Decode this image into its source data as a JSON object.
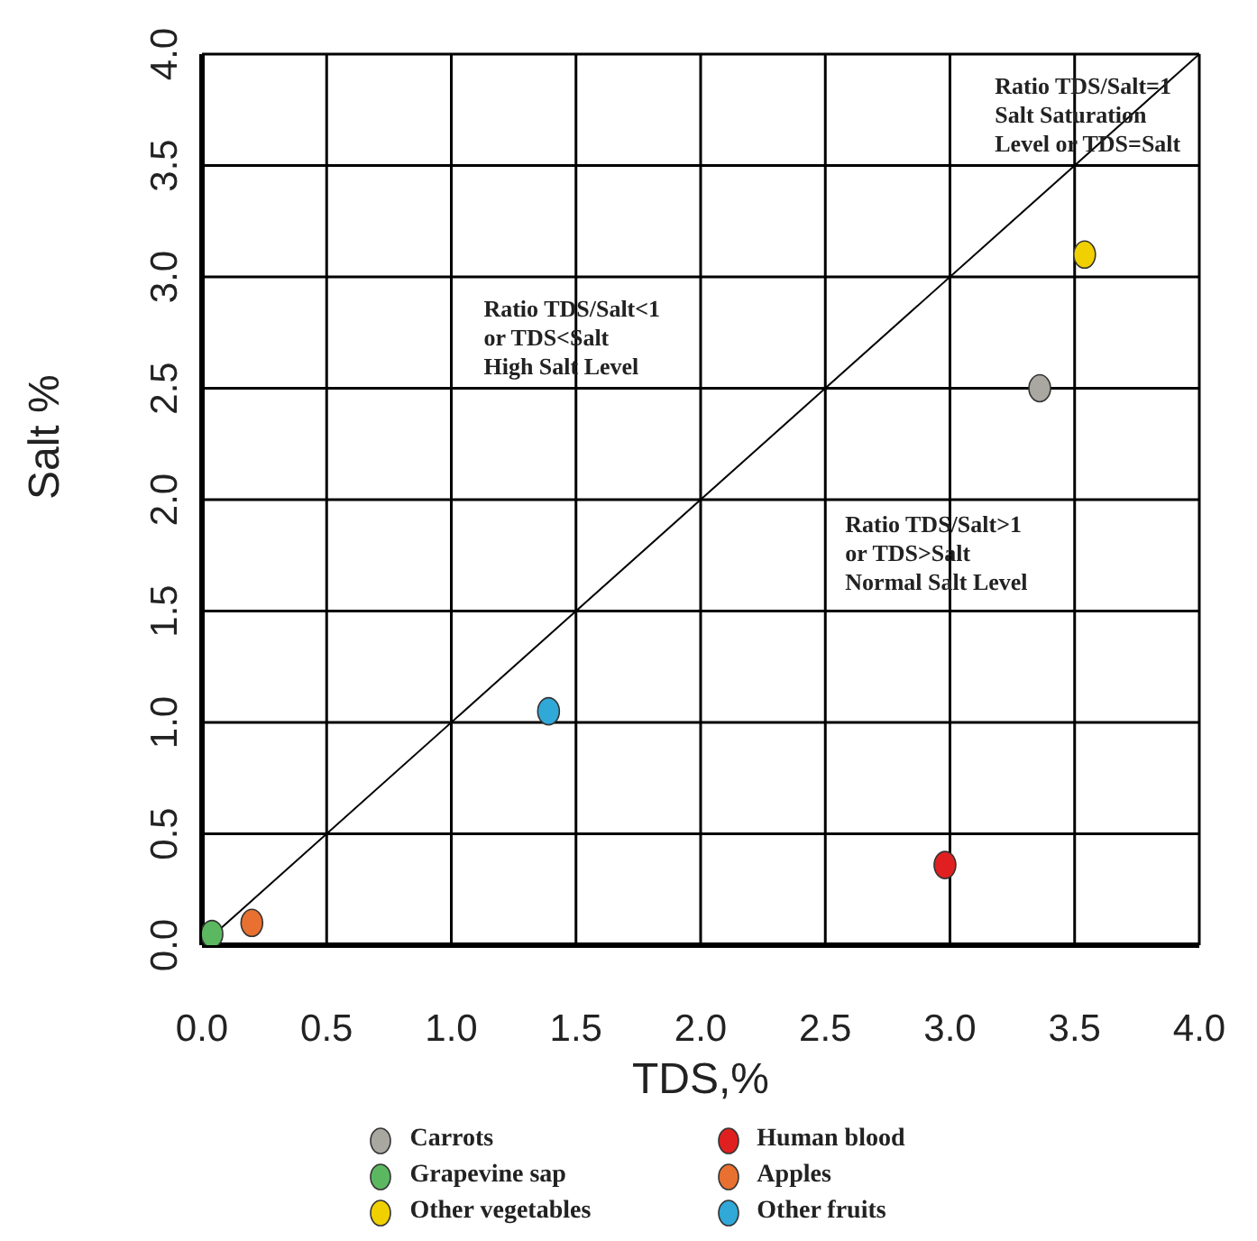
{
  "chart_data": {
    "type": "scatter",
    "xlabel": "TDS,%",
    "ylabel": "Salt %",
    "xlim": [
      0,
      4
    ],
    "ylim": [
      0,
      4
    ],
    "xticks": [
      {
        "value": 0,
        "label": "0.0"
      },
      {
        "value": 0.5,
        "label": "0.5"
      },
      {
        "value": 1,
        "label": "1.0"
      },
      {
        "value": 1.5,
        "label": "1.5"
      },
      {
        "value": 2,
        "label": "2.0"
      },
      {
        "value": 2.5,
        "label": "2.5"
      },
      {
        "value": 3,
        "label": "3.0"
      },
      {
        "value": 3.5,
        "label": "3.5"
      },
      {
        "value": 4,
        "label": "4.0"
      }
    ],
    "yticks": [
      {
        "value": 0,
        "label": "0.0"
      },
      {
        "value": 0.5,
        "label": "0.5"
      },
      {
        "value": 1,
        "label": "1.0"
      },
      {
        "value": 1.5,
        "label": "1.5"
      },
      {
        "value": 2,
        "label": "2.0"
      },
      {
        "value": 2.5,
        "label": "2.5"
      },
      {
        "value": 3,
        "label": "3.0"
      },
      {
        "value": 3.5,
        "label": "3.5"
      },
      {
        "value": 4,
        "label": "4.0"
      }
    ],
    "grid": true,
    "legend": "bottom",
    "marker": "circle",
    "series": [
      {
        "name": "Carrots",
        "color": "#a8a8a0",
        "x": [
          3.36
        ],
        "values": [
          2.5
        ]
      },
      {
        "name": "Grapevine sap",
        "color": "#5cb860",
        "x": [
          0.04
        ],
        "values": [
          0.05
        ]
      },
      {
        "name": "Other vegetables",
        "color": "#f0d000",
        "x": [
          3.54
        ],
        "values": [
          3.1
        ]
      },
      {
        "name": "Human blood",
        "color": "#e02020",
        "x": [
          2.98
        ],
        "values": [
          0.36
        ]
      },
      {
        "name": "Apples",
        "color": "#e87030",
        "x": [
          0.2
        ],
        "values": [
          0.1
        ]
      },
      {
        "name": "Other fruits",
        "color": "#30a8d8",
        "x": [
          1.39
        ],
        "values": [
          1.05
        ]
      },
      {
        "type": "line",
        "color": "#000000",
        "x": [
          0,
          4
        ],
        "values": [
          0,
          4
        ],
        "marker": "none"
      }
    ],
    "annotations": [
      "Ratio TDS/Salt=1\nSalt Saturation\nLevel or TDS=Salt",
      "Ratio TDS/Salt<1\nor TDS<Salt\nHigh Salt Level",
      "Ratio TDS/Salt>1\nor TDS>Salt\nNormal Salt Level"
    ]
  }
}
